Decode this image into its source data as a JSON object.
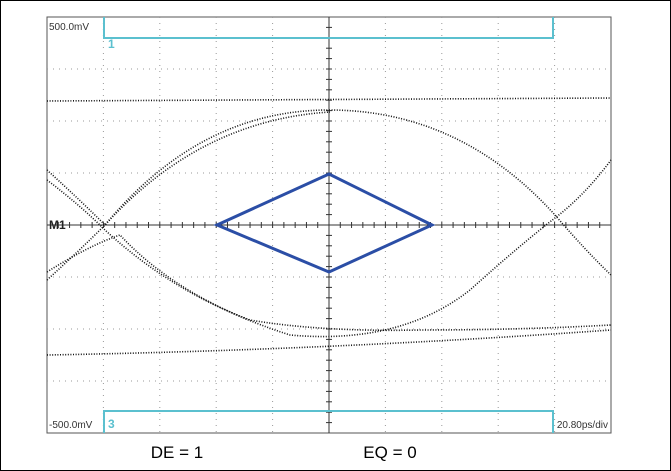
{
  "screen": {
    "top_level": "500.0mV",
    "top_channel": "1",
    "marker": "M1",
    "bottom_level": "-500.0mV",
    "bottom_channel": "3",
    "timebase": "20.80ps/div"
  },
  "captions": [
    "DE = 1",
    "EQ = 0"
  ]
}
